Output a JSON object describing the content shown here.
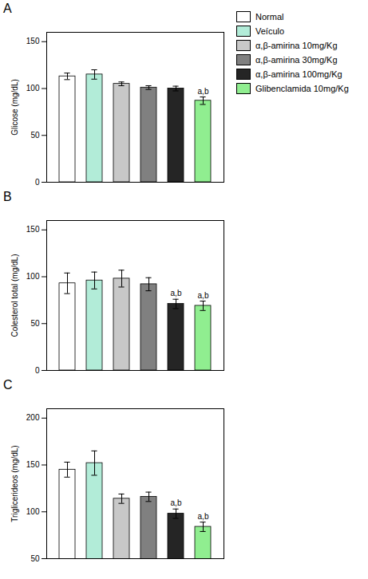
{
  "chart_data": [
    {
      "type": "bar",
      "title": "A",
      "ylabel": "Glicose (mg/dL)",
      "categories": [
        "Normal",
        "Veículo",
        "α,β-amirina 10mg/Kg",
        "α,β-amirina 30mg/Kg",
        "α,β-amirina 100mg/Kg",
        "Glibenclamida 10mg/Kg"
      ],
      "values": [
        113,
        115,
        105,
        101,
        100,
        87
      ],
      "errors": [
        3.5,
        5.0,
        2.0,
        2.0,
        2.5,
        4.0
      ],
      "annotations": [
        null,
        null,
        null,
        null,
        null,
        "a,b"
      ],
      "colors": [
        "#ffffff",
        "#b2ecd8",
        "#c8c8c8",
        "#808080",
        "#252525",
        "#90ee90"
      ],
      "ylim": [
        0,
        160
      ],
      "yticks": [
        0,
        50,
        100,
        150
      ],
      "tick_labels": "y",
      "legend": "upper right"
    },
    {
      "type": "bar",
      "title": "B",
      "ylabel": "Colesterol total (mg/dL)",
      "categories": [
        "Normal",
        "Veículo",
        "α,β-amirina 10mg/Kg",
        "α,β-amirina 30mg/Kg",
        "α,β-amirina 100mg/Kg",
        "Glibenclamida 10mg/Kg"
      ],
      "values": [
        93,
        96,
        98,
        92,
        71,
        69
      ],
      "errors": [
        11,
        9,
        9,
        7,
        5,
        5
      ],
      "annotations": [
        null,
        null,
        null,
        null,
        "a,b",
        "a,b"
      ],
      "colors": [
        "#ffffff",
        "#b2ecd8",
        "#c8c8c8",
        "#808080",
        "#252525",
        "#90ee90"
      ],
      "ylim": [
        0,
        160
      ],
      "yticks": [
        0,
        50,
        100,
        150
      ],
      "tick_labels": "y"
    },
    {
      "type": "bar",
      "title": "C",
      "ylabel": "Triglicerideos (mg/dL)",
      "categories": [
        "Normal",
        "Veículo",
        "α,β-amirina 10mg/Kg",
        "α,β-amirina 30mg/Kg",
        "α,β-amirina 100mg/Kg",
        "Glibenclamida 10mg/Kg"
      ],
      "values": [
        145,
        152,
        114,
        116,
        98,
        84
      ],
      "errors": [
        8,
        13,
        5,
        5,
        5,
        5
      ],
      "annotations": [
        null,
        null,
        null,
        null,
        "a,b",
        "a,b"
      ],
      "colors": [
        "#ffffff",
        "#b2ecd8",
        "#c8c8c8",
        "#808080",
        "#252525",
        "#90ee90"
      ],
      "ylim": [
        50,
        210
      ],
      "yticks": [
        50,
        100,
        150,
        200
      ],
      "tick_labels": "y"
    }
  ]
}
